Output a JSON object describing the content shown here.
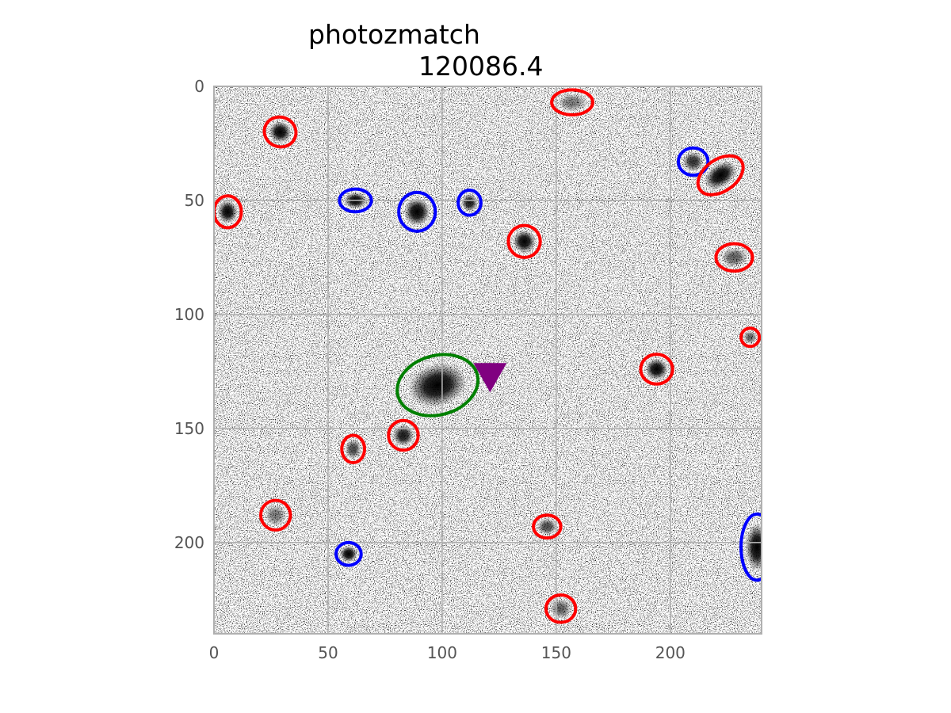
{
  "title_lines": [
    "photozmatch",
    "120086.4"
  ],
  "chart_data": {
    "type": "image",
    "title": "photozmatch\n120086.4",
    "xlabel": "",
    "ylabel": "",
    "xlim": [
      0,
      240
    ],
    "ylim": [
      240,
      0
    ],
    "y_inverted": true,
    "grid": true,
    "xticks": [
      0,
      50,
      100,
      150,
      200
    ],
    "yticks": [
      0,
      50,
      100,
      150,
      200
    ],
    "colors": {
      "red_marker": "#ff0000",
      "blue_marker": "#0000ff",
      "green_marker": "#008000",
      "triangle_marker": "#800080",
      "grid": "#b0b0b0",
      "tick_text": "#555555"
    },
    "sources": [
      {
        "x": 157,
        "y": 7,
        "a": 9,
        "b": 5.5,
        "angle": 0,
        "color": "red",
        "peak": 0.5
      },
      {
        "x": 29,
        "y": 20,
        "a": 7,
        "b": 6.5,
        "angle": 20,
        "color": "red",
        "peak": 1.0
      },
      {
        "x": 210,
        "y": 33,
        "a": 6.5,
        "b": 6,
        "angle": 0,
        "color": "blue",
        "peak": 0.8
      },
      {
        "x": 222,
        "y": 39,
        "a": 11,
        "b": 7,
        "angle": -35,
        "color": "red",
        "peak": 1.0
      },
      {
        "x": 62,
        "y": 50,
        "a": 7,
        "b": 5,
        "angle": 0,
        "color": "blue",
        "peak": 1.0
      },
      {
        "x": 89,
        "y": 55,
        "a": 8,
        "b": 8.5,
        "angle": 0,
        "color": "blue",
        "peak": 1.0
      },
      {
        "x": 112,
        "y": 51,
        "a": 5,
        "b": 5.5,
        "angle": 0,
        "color": "blue",
        "peak": 0.9
      },
      {
        "x": 6,
        "y": 55,
        "a": 6,
        "b": 7,
        "angle": 0,
        "color": "red",
        "peak": 1.0
      },
      {
        "x": 136,
        "y": 68,
        "a": 7,
        "b": 7,
        "angle": 0,
        "color": "red",
        "peak": 1.0
      },
      {
        "x": 228,
        "y": 75,
        "a": 8,
        "b": 6,
        "angle": 0,
        "color": "red",
        "peak": 0.6
      },
      {
        "x": 235,
        "y": 110,
        "a": 4,
        "b": 4,
        "angle": 0,
        "color": "red",
        "peak": 0.6
      },
      {
        "x": 98,
        "y": 131,
        "a": 18,
        "b": 13,
        "angle": -15,
        "color": "green",
        "peak": 1.0
      },
      {
        "x": 194,
        "y": 124,
        "a": 7,
        "b": 6.5,
        "angle": 0,
        "color": "red",
        "peak": 1.0
      },
      {
        "x": 83,
        "y": 153,
        "a": 6.5,
        "b": 6.5,
        "angle": 0,
        "color": "red",
        "peak": 0.9
      },
      {
        "x": 61,
        "y": 159,
        "a": 5,
        "b": 6,
        "angle": 0,
        "color": "red",
        "peak": 0.7
      },
      {
        "x": 27,
        "y": 188,
        "a": 6.5,
        "b": 6.5,
        "angle": 0,
        "color": "red",
        "peak": 0.5
      },
      {
        "x": 146,
        "y": 193,
        "a": 6,
        "b": 5,
        "angle": 0,
        "color": "red",
        "peak": 0.7
      },
      {
        "x": 59,
        "y": 205,
        "a": 5.5,
        "b": 5,
        "angle": 0,
        "color": "blue",
        "peak": 1.0
      },
      {
        "x": 238,
        "y": 202,
        "a": 7,
        "b": 14.5,
        "angle": 0,
        "color": "blue",
        "peak": 1.0
      },
      {
        "x": 152,
        "y": 229,
        "a": 6.5,
        "b": 6,
        "angle": 0,
        "color": "red",
        "peak": 0.6
      }
    ],
    "marker": {
      "x": 121,
      "y": 122,
      "shape": "triangle-down",
      "color": "purple"
    }
  }
}
